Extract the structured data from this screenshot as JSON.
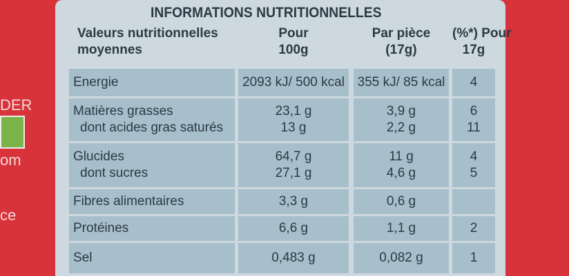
{
  "side_fragments": [
    "DER",
    "om",
    "ce"
  ],
  "title": "INFORMATIONS NUTRITIONNELLES",
  "headers": [
    [
      "Valeurs nutritionnelles",
      "moyennes"
    ],
    [
      "Pour",
      "100g"
    ],
    [
      "Par pièce",
      "(17g)"
    ],
    [
      "(%*) Pour",
      "17g"
    ]
  ],
  "rows": [
    {
      "labels": [
        "Energie"
      ],
      "per_100g": [
        "2093 kJ/ 500 kcal"
      ],
      "per_piece": [
        "355 kJ/ 85 kcal"
      ],
      "percent": [
        "4"
      ]
    },
    {
      "labels": [
        "Matières grasses",
        "dont acides gras saturés"
      ],
      "per_100g": [
        "23,1 g",
        "13 g"
      ],
      "per_piece": [
        "3,9 g",
        "2,2 g"
      ],
      "percent": [
        "6",
        "11"
      ]
    },
    {
      "labels": [
        "Glucides",
        "dont sucres"
      ],
      "per_100g": [
        "64,7 g",
        "27,1 g"
      ],
      "per_piece": [
        "11 g",
        "4,6 g"
      ],
      "percent": [
        "4",
        "5"
      ]
    },
    {
      "labels": [
        "Fibres alimentaires"
      ],
      "per_100g": [
        "3,3 g"
      ],
      "per_piece": [
        "0,6 g"
      ],
      "percent": []
    },
    {
      "labels": [
        "Protéines"
      ],
      "per_100g": [
        "6,6 g"
      ],
      "per_piece": [
        "1,1 g"
      ],
      "percent": [
        "2"
      ]
    },
    {
      "labels": [
        "Sel"
      ],
      "per_100g": [
        "0,483 g"
      ],
      "per_piece": [
        "0,082 g"
      ],
      "percent": [
        "1"
      ]
    }
  ]
}
